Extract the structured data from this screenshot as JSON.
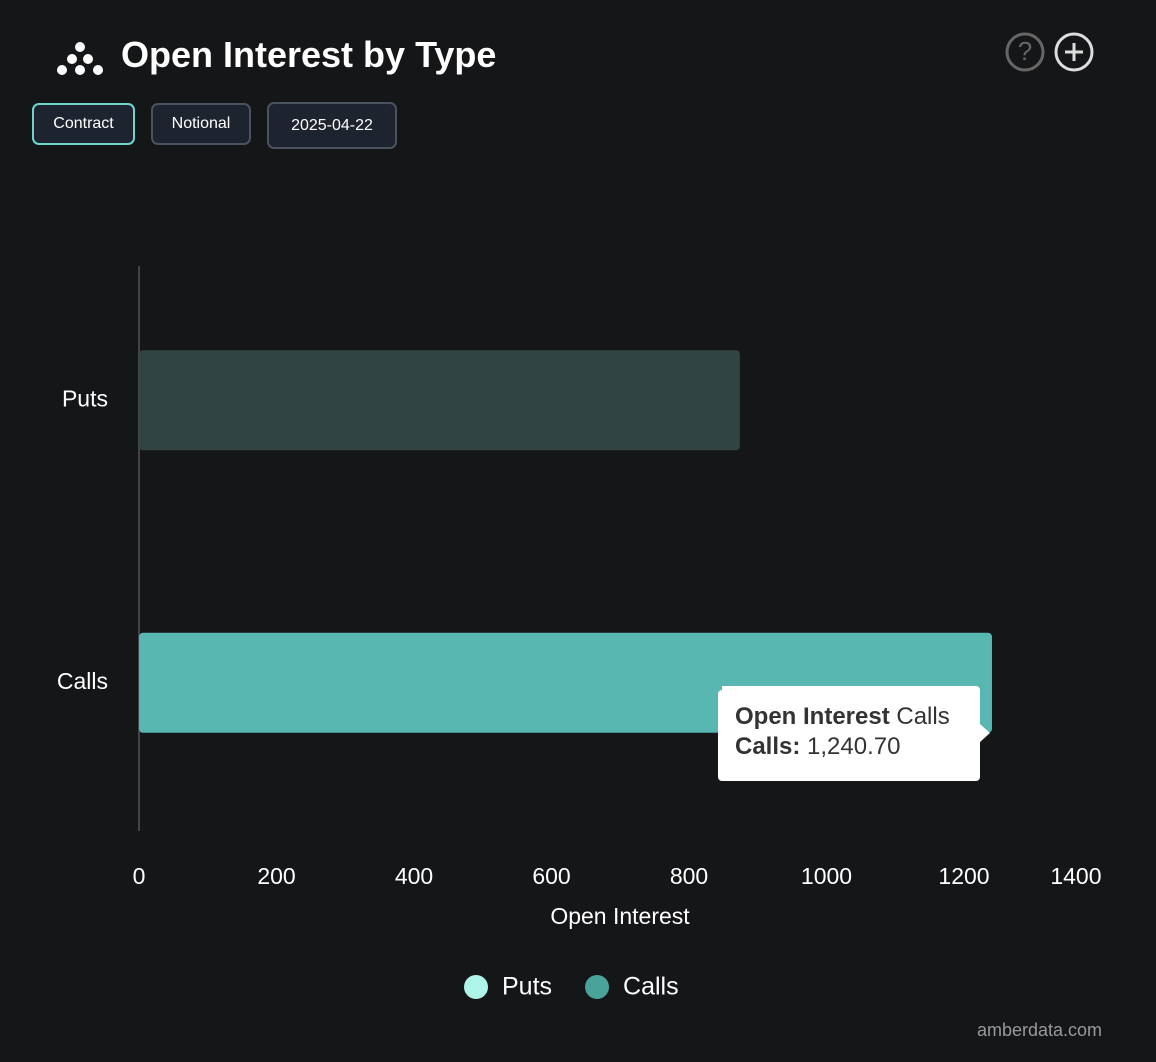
{
  "header": {
    "title": "Open Interest by Type",
    "buttons": [
      "Contract",
      "Notional",
      "2025-04-22"
    ]
  },
  "chart_data": {
    "type": "bar",
    "orientation": "horizontal",
    "categories": [
      "Puts",
      "Calls"
    ],
    "series": [
      {
        "name": "Puts",
        "color": "#aef5e9",
        "bar_color": "#304542",
        "values": [
          874,
          null
        ]
      },
      {
        "name": "Calls",
        "color": "#4aa39a",
        "bar_color": "#58b7b1",
        "values": [
          null,
          1240.7
        ],
        "value_labels": [
          null,
          "1,240.70"
        ]
      }
    ],
    "x_label": "Open Interest",
    "xlim": [
      0,
      1400
    ],
    "xticks": [
      0,
      200,
      400,
      600,
      800,
      1000,
      1200,
      1400
    ],
    "tooltip": {
      "title": "Open Interest",
      "label": "Calls:"
    }
  },
  "footer": "amberdata.com"
}
